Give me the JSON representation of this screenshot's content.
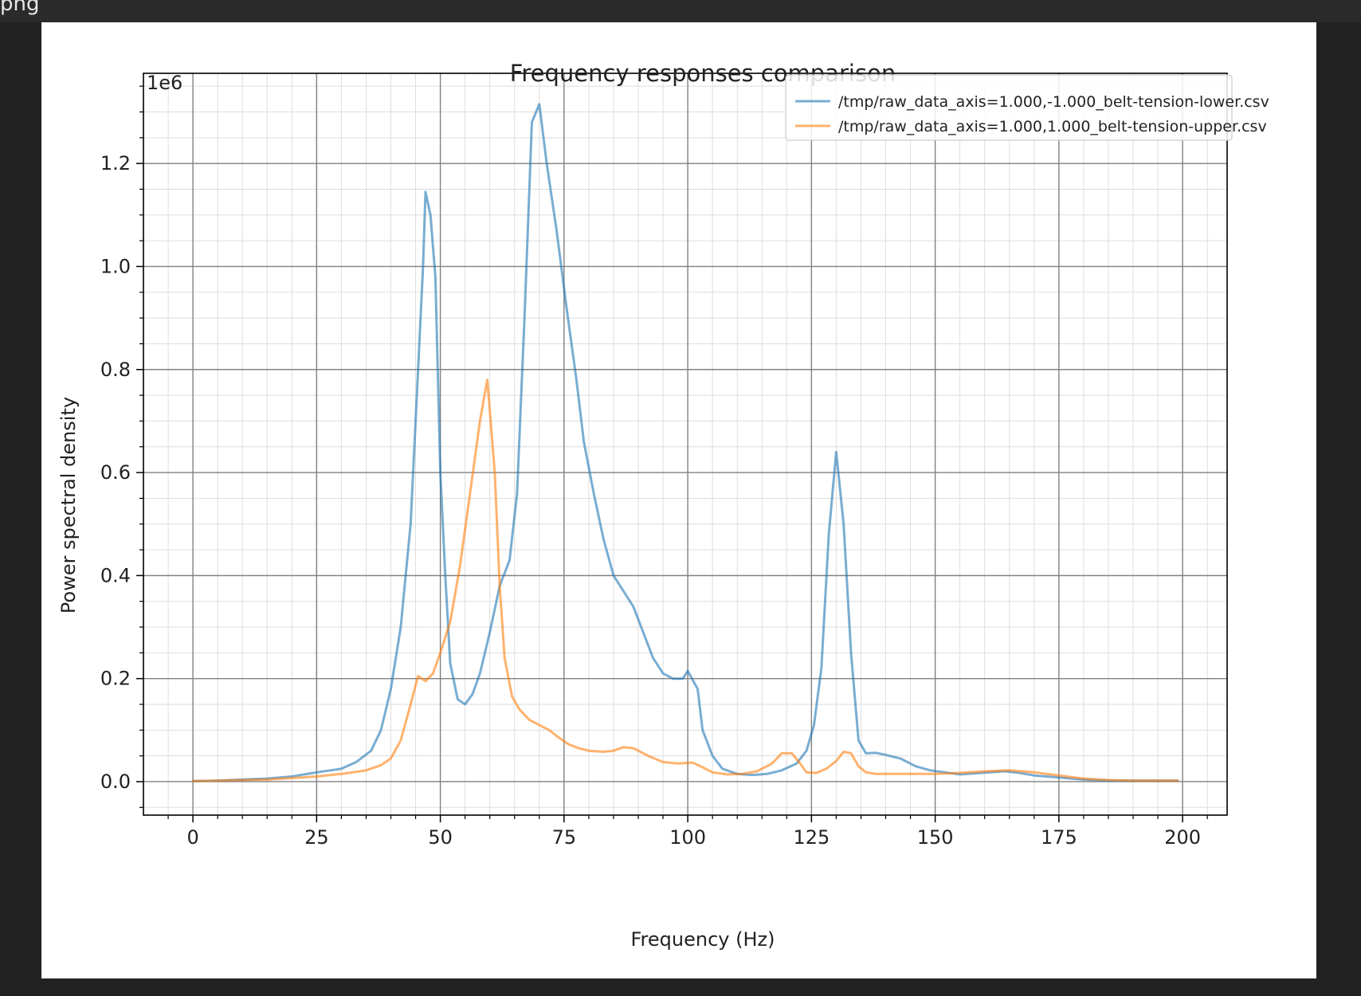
{
  "header": {
    "text": "png"
  },
  "chart_data": {
    "type": "line",
    "title": "Frequency responses comparison",
    "xlabel": "Frequency (Hz)",
    "ylabel": "Power spectral density",
    "y_offset_label": "1e6",
    "xlim": [
      -10,
      209
    ],
    "ylim": [
      -65000,
      1375000
    ],
    "x_ticks": [
      0,
      25,
      50,
      75,
      100,
      125,
      150,
      175,
      200
    ],
    "x_tick_labels": [
      "0",
      "25",
      "50",
      "75",
      "100",
      "125",
      "150",
      "175",
      "200"
    ],
    "y_ticks": [
      0,
      200000,
      400000,
      600000,
      800000,
      1000000,
      1200000
    ],
    "y_tick_labels": [
      "0.0",
      "0.2",
      "0.4",
      "0.6",
      "0.8",
      "1.0",
      "1.2"
    ],
    "grid": "major and minor",
    "legend_position": "top-right",
    "series": [
      {
        "name": "/tmp/raw_data_axis=1.000,-1.000_belt-tension-lower.csv",
        "color": "#1f77b4",
        "points": [
          [
            0,
            1000
          ],
          [
            5,
            2000
          ],
          [
            10,
            4000
          ],
          [
            15,
            6000
          ],
          [
            20,
            10000
          ],
          [
            25,
            18000
          ],
          [
            30,
            25000
          ],
          [
            33,
            38000
          ],
          [
            36,
            60000
          ],
          [
            38,
            100000
          ],
          [
            40,
            180000
          ],
          [
            42,
            300000
          ],
          [
            44,
            500000
          ],
          [
            45.5,
            800000
          ],
          [
            46.5,
            1000000
          ],
          [
            47,
            1145000
          ],
          [
            48,
            1100000
          ],
          [
            49,
            980000
          ],
          [
            50,
            600000
          ],
          [
            51,
            400000
          ],
          [
            52,
            230000
          ],
          [
            53.5,
            160000
          ],
          [
            55,
            150000
          ],
          [
            56.5,
            170000
          ],
          [
            58,
            210000
          ],
          [
            60,
            290000
          ],
          [
            62,
            380000
          ],
          [
            64,
            430000
          ],
          [
            65.5,
            560000
          ],
          [
            67,
            900000
          ],
          [
            68.5,
            1280000
          ],
          [
            70,
            1315000
          ],
          [
            71.5,
            1200000
          ],
          [
            73.5,
            1070000
          ],
          [
            75.5,
            920000
          ],
          [
            77.5,
            780000
          ],
          [
            79,
            660000
          ],
          [
            81,
            560000
          ],
          [
            83,
            470000
          ],
          [
            85,
            400000
          ],
          [
            87,
            370000
          ],
          [
            89,
            340000
          ],
          [
            91,
            290000
          ],
          [
            93,
            240000
          ],
          [
            95,
            210000
          ],
          [
            97,
            200000
          ],
          [
            99,
            200000
          ],
          [
            100,
            215000
          ],
          [
            102,
            180000
          ],
          [
            103,
            100000
          ],
          [
            105,
            50000
          ],
          [
            107,
            25000
          ],
          [
            110,
            15000
          ],
          [
            113,
            13000
          ],
          [
            116,
            15000
          ],
          [
            119,
            22000
          ],
          [
            122,
            35000
          ],
          [
            124,
            60000
          ],
          [
            125.5,
            110000
          ],
          [
            127,
            220000
          ],
          [
            128.5,
            480000
          ],
          [
            130,
            640000
          ],
          [
            131.5,
            500000
          ],
          [
            133,
            250000
          ],
          [
            134.5,
            80000
          ],
          [
            136,
            55000
          ],
          [
            138,
            56000
          ],
          [
            140,
            52000
          ],
          [
            143,
            45000
          ],
          [
            146,
            30000
          ],
          [
            149,
            22000
          ],
          [
            152,
            18000
          ],
          [
            155,
            14000
          ],
          [
            158,
            16000
          ],
          [
            161,
            18000
          ],
          [
            164,
            20000
          ],
          [
            167,
            17000
          ],
          [
            170,
            12000
          ],
          [
            175,
            8000
          ],
          [
            180,
            4000
          ],
          [
            185,
            2000
          ],
          [
            190,
            2000
          ],
          [
            195,
            2000
          ],
          [
            199,
            2000
          ]
        ]
      },
      {
        "name": "/tmp/raw_data_axis=1.000,1.000_belt-tension-upper.csv",
        "color": "#ff7f0e",
        "points": [
          [
            0,
            1000
          ],
          [
            5,
            2000
          ],
          [
            10,
            3000
          ],
          [
            15,
            4000
          ],
          [
            20,
            7000
          ],
          [
            25,
            10000
          ],
          [
            30,
            15000
          ],
          [
            35,
            22000
          ],
          [
            38,
            32000
          ],
          [
            40,
            45000
          ],
          [
            42,
            80000
          ],
          [
            44,
            150000
          ],
          [
            45.5,
            205000
          ],
          [
            47,
            195000
          ],
          [
            48.5,
            210000
          ],
          [
            50,
            250000
          ],
          [
            52,
            310000
          ],
          [
            54,
            420000
          ],
          [
            56,
            560000
          ],
          [
            58,
            700000
          ],
          [
            59.5,
            780000
          ],
          [
            61,
            600000
          ],
          [
            62,
            380000
          ],
          [
            63,
            240000
          ],
          [
            64.5,
            165000
          ],
          [
            66,
            140000
          ],
          [
            68,
            120000
          ],
          [
            70,
            110000
          ],
          [
            72,
            100000
          ],
          [
            74,
            85000
          ],
          [
            76,
            72000
          ],
          [
            78,
            65000
          ],
          [
            80,
            60000
          ],
          [
            83,
            58000
          ],
          [
            85,
            60000
          ],
          [
            87,
            67000
          ],
          [
            89,
            65000
          ],
          [
            92,
            50000
          ],
          [
            95,
            38000
          ],
          [
            98,
            35000
          ],
          [
            101,
            37000
          ],
          [
            103,
            28000
          ],
          [
            105,
            18000
          ],
          [
            108,
            14000
          ],
          [
            111,
            15000
          ],
          [
            114,
            20000
          ],
          [
            117,
            35000
          ],
          [
            119,
            55000
          ],
          [
            121,
            55000
          ],
          [
            122.5,
            38000
          ],
          [
            124,
            18000
          ],
          [
            126,
            17000
          ],
          [
            128,
            25000
          ],
          [
            130,
            40000
          ],
          [
            131.5,
            58000
          ],
          [
            133,
            55000
          ],
          [
            134.5,
            30000
          ],
          [
            136,
            18000
          ],
          [
            138,
            15000
          ],
          [
            140,
            15000
          ],
          [
            145,
            15000
          ],
          [
            150,
            15000
          ],
          [
            155,
            17000
          ],
          [
            160,
            20000
          ],
          [
            165,
            22000
          ],
          [
            170,
            18000
          ],
          [
            175,
            12000
          ],
          [
            180,
            6000
          ],
          [
            185,
            3000
          ],
          [
            190,
            2000
          ],
          [
            195,
            2000
          ],
          [
            199,
            2000
          ]
        ]
      }
    ]
  }
}
